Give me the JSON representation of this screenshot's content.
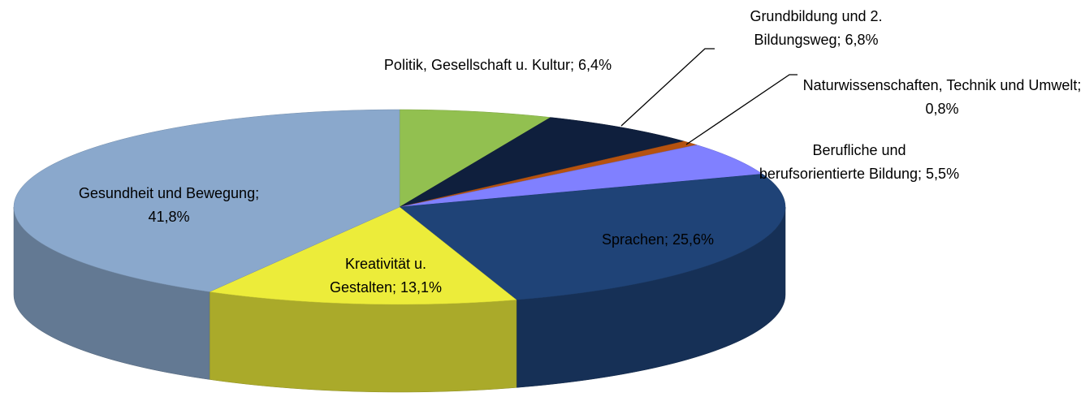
{
  "chart_data": {
    "type": "pie3d",
    "categories": [
      "Politik, Gesellschaft u. Kultur;",
      "Grundbildung und 2. Bildungsweg;",
      "Naturwissenschaften, Technik und Umwelt;",
      "Berufliche und berufsorientierte Bildung;",
      "Sprachen;",
      "Kreativität u. Gestalten;",
      "Gesundheit und Bewegung;"
    ],
    "values": [
      6.4,
      6.8,
      0.8,
      5.5,
      25.6,
      13.1,
      41.8
    ],
    "value_labels": [
      "6,4%",
      "6,8%",
      "0,8%",
      "5,5%",
      "25,6%",
      "13,1%",
      "41,8%"
    ],
    "colors": [
      "#92c050",
      "#0f1f3d",
      "#b5520f",
      "#8080ff",
      "#1f4377",
      "#ecec3a",
      "#8aa8cc"
    ]
  }
}
